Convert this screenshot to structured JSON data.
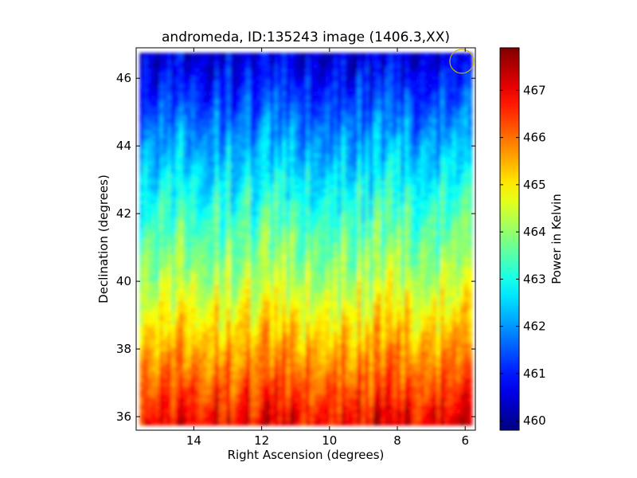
{
  "chart_data": {
    "type": "heatmap",
    "title": "andromeda, ID:135243 image (1406.3,XX)",
    "xlabel": "Right Ascension (degrees)",
    "ylabel": "Declination (degrees)",
    "xlim": [
      15.7,
      5.7
    ],
    "ylim": [
      35.6,
      46.9
    ],
    "x_ticks": [
      14,
      12,
      10,
      8,
      6
    ],
    "y_ticks": [
      36,
      38,
      40,
      42,
      44,
      46
    ],
    "x_tick_labels": [
      "14",
      "12",
      "10",
      "8",
      "6"
    ],
    "y_tick_labels": [
      "36",
      "38",
      "40",
      "42",
      "44",
      "46"
    ],
    "colormap": "jet",
    "colorbar": {
      "label": "Power in Kelvin",
      "min": 459.8,
      "max": 467.9,
      "ticks": [
        460,
        461,
        462,
        463,
        464,
        465,
        466,
        467
      ],
      "tick_labels": [
        "460",
        "461",
        "462",
        "463",
        "464",
        "465",
        "466",
        "467"
      ]
    },
    "field_summary": {
      "value_at_dec_36": 466.9,
      "value_at_dec_38": 465.6,
      "value_at_dec_40": 464.3,
      "value_at_dec_42": 463.3,
      "value_at_dec_44": 462.2,
      "value_at_dec_46": 460.9,
      "pattern": "vertical streaks; power decreases with declination"
    },
    "annotation": {
      "type": "circle",
      "ra": 6.1,
      "dec": 46.5,
      "color": "#c8b400"
    },
    "grid": false
  }
}
